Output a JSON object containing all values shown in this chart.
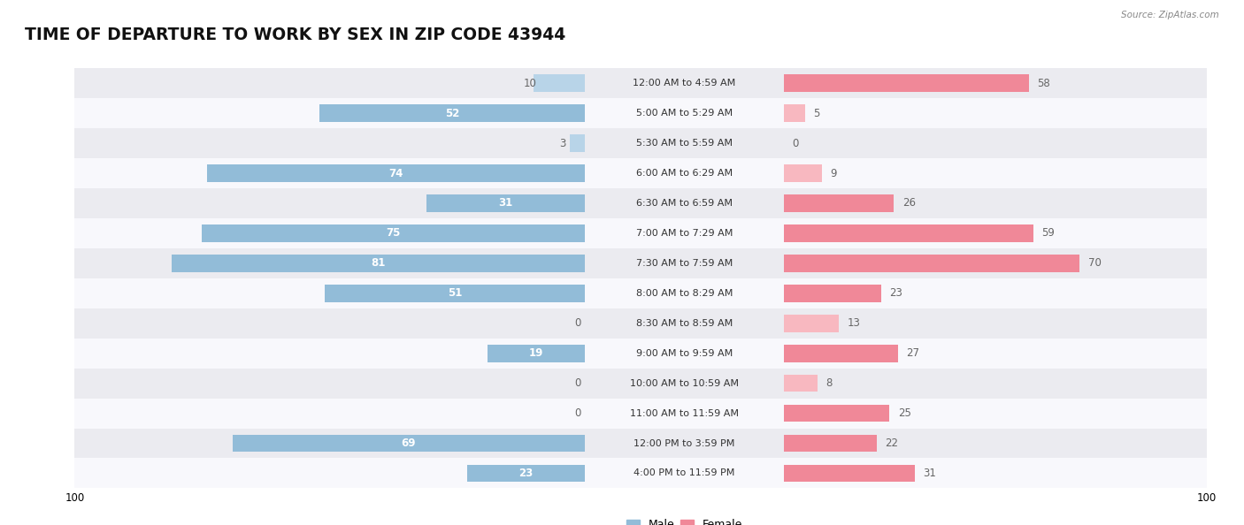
{
  "title": "TIME OF DEPARTURE TO WORK BY SEX IN ZIP CODE 43944",
  "source": "Source: ZipAtlas.com",
  "categories": [
    "12:00 AM to 4:59 AM",
    "5:00 AM to 5:29 AM",
    "5:30 AM to 5:59 AM",
    "6:00 AM to 6:29 AM",
    "6:30 AM to 6:59 AM",
    "7:00 AM to 7:29 AM",
    "7:30 AM to 7:59 AM",
    "8:00 AM to 8:29 AM",
    "8:30 AM to 8:59 AM",
    "9:00 AM to 9:59 AM",
    "10:00 AM to 10:59 AM",
    "11:00 AM to 11:59 AM",
    "12:00 PM to 3:59 PM",
    "4:00 PM to 11:59 PM"
  ],
  "male_values": [
    10,
    52,
    3,
    74,
    31,
    75,
    81,
    51,
    0,
    19,
    0,
    0,
    69,
    23
  ],
  "female_values": [
    58,
    5,
    0,
    9,
    26,
    59,
    70,
    23,
    13,
    27,
    8,
    25,
    22,
    31
  ],
  "male_color": "#92bcd8",
  "female_color": "#f08898",
  "male_color_light": "#b8d4e8",
  "female_color_light": "#f8b8c0",
  "x_max": 100,
  "bar_height": 0.58,
  "row_bg_colors": [
    "#ebebf0",
    "#f8f8fc"
  ],
  "title_fontsize": 13.5,
  "label_fontsize": 8.5,
  "cat_fontsize": 8.0,
  "axis_tick_fontsize": 8.5,
  "legend_fontsize": 9,
  "inside_label_threshold": 15,
  "value_label_color_outside": "#666666",
  "value_label_color_inside": "#ffffff"
}
